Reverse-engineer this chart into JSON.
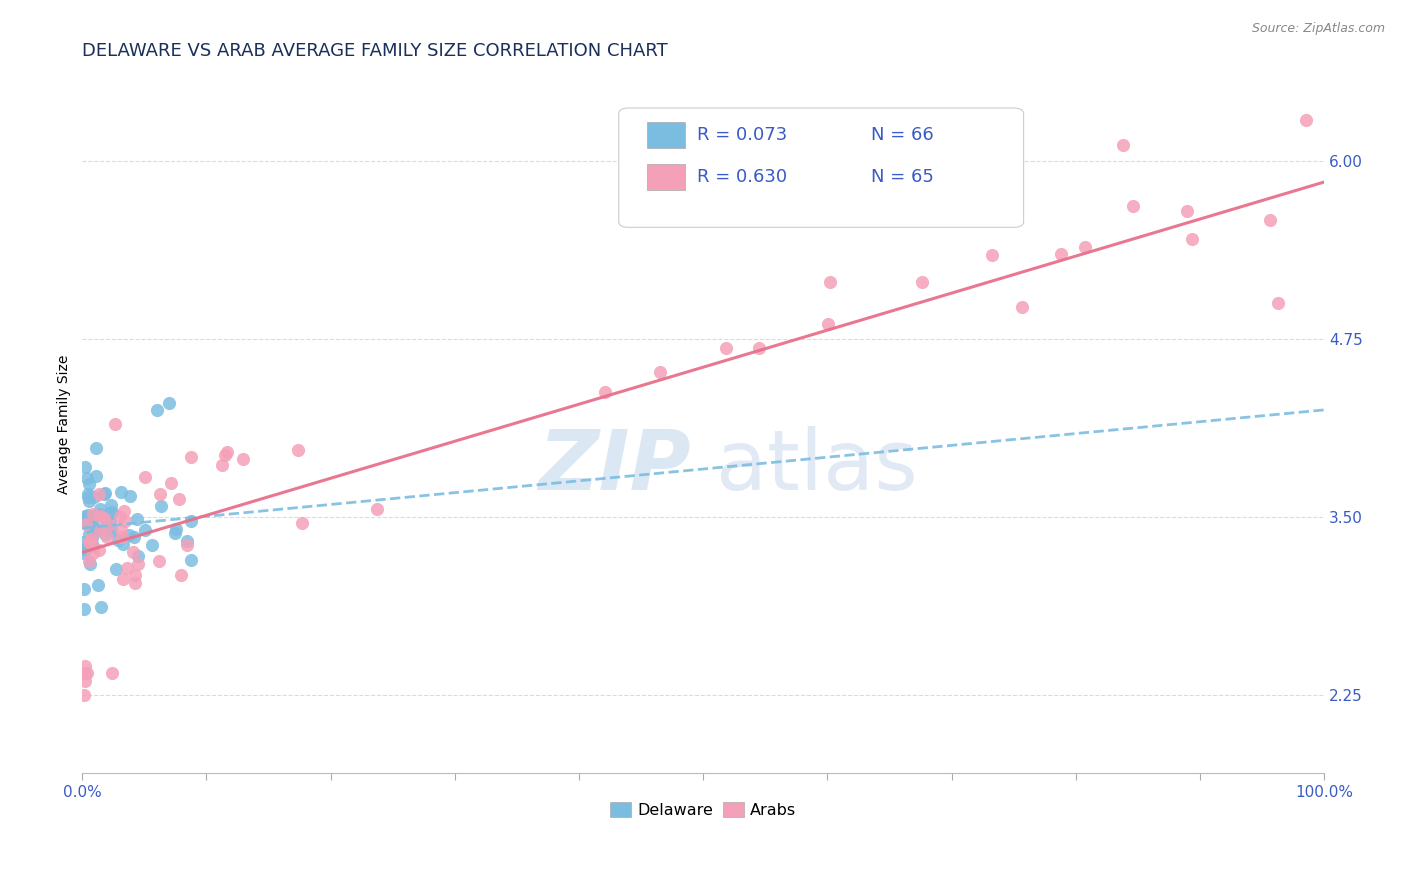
{
  "title": "DELAWARE VS ARAB AVERAGE FAMILY SIZE CORRELATION CHART",
  "source": "Source: ZipAtlas.com",
  "ylabel": "Average Family Size",
  "xlim": [
    0.0,
    1.0
  ],
  "ylim": [
    1.7,
    6.6
  ],
  "yticks": [
    2.25,
    3.5,
    4.75,
    6.0
  ],
  "xtick_positions": [
    0.0,
    0.1,
    0.2,
    0.3,
    0.4,
    0.5,
    0.6,
    0.7,
    0.8,
    0.9,
    1.0
  ],
  "xtick_labels_show": [
    "0.0%",
    "",
    "",
    "",
    "",
    "",
    "",
    "",
    "",
    "",
    "100.0%"
  ],
  "delaware_color": "#7bbde0",
  "arab_color": "#f4a0b8",
  "trend_delaware_color": "#7bbde0",
  "trend_arab_color": "#e8708a",
  "title_color": "#1a2f5a",
  "axis_label_color": "#3a5bc7",
  "tick_color": "#3a5bc7",
  "background_color": "#ffffff",
  "grid_color": "#d8d8d8",
  "legend_r_delaware": "R = 0.073",
  "legend_n_delaware": "N = 66",
  "legend_r_arab": "R = 0.630",
  "legend_n_arab": "N = 65",
  "watermark_zip": "ZIP",
  "watermark_atlas": "atlas",
  "delaware_n": 66,
  "arab_n": 65,
  "delaware_R": 0.073,
  "arab_R": 0.63,
  "arab_trend_x0": 0.0,
  "arab_trend_y0": 3.25,
  "arab_trend_x1": 1.0,
  "arab_trend_y1": 5.85,
  "del_trend_x0": 0.0,
  "del_trend_y0": 3.42,
  "del_trend_x1": 1.0,
  "del_trend_y1": 4.25,
  "title_fontsize": 13,
  "axis_label_fontsize": 10,
  "tick_fontsize": 11,
  "legend_fontsize": 13,
  "dot_size": 90,
  "dot_linewidth": 1.2
}
